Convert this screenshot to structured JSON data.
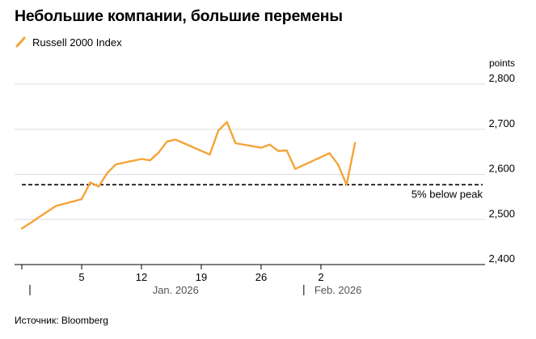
{
  "title": "Небольшие компании, большие перемены",
  "source": "Источник: Bloomberg",
  "chart_data": {
    "type": "line",
    "unit": "points",
    "series": [
      {
        "name": "Russell 2000 Index",
        "color": "#F5A338",
        "points": [
          [
            "2025-12-29",
            2480
          ],
          [
            "2025-12-30",
            2492
          ],
          [
            "2025-12-31",
            2505
          ],
          [
            "2026-01-02",
            2530
          ],
          [
            "2026-01-05",
            2545
          ],
          [
            "2026-01-06",
            2582
          ],
          [
            "2026-01-07",
            2573
          ],
          [
            "2026-01-08",
            2603
          ],
          [
            "2026-01-09",
            2622
          ],
          [
            "2026-01-12",
            2634
          ],
          [
            "2026-01-13",
            2631
          ],
          [
            "2026-01-14",
            2648
          ],
          [
            "2026-01-15",
            2673
          ],
          [
            "2026-01-16",
            2677
          ],
          [
            "2026-01-20",
            2644
          ],
          [
            "2026-01-21",
            2697
          ],
          [
            "2026-01-22",
            2716
          ],
          [
            "2026-01-23",
            2669
          ],
          [
            "2026-01-26",
            2659
          ],
          [
            "2026-01-27",
            2666
          ],
          [
            "2026-01-28",
            2652
          ],
          [
            "2026-01-29",
            2653
          ],
          [
            "2026-01-30",
            2612
          ],
          [
            "2026-02-03",
            2647
          ],
          [
            "2026-02-04",
            2622
          ],
          [
            "2026-02-05",
            2577
          ],
          [
            "2026-02-06",
            2670
          ]
        ]
      }
    ],
    "y_axis": {
      "min": 2400,
      "max": 2800,
      "ticks": [
        2400,
        2500,
        2600,
        2700,
        2800
      ],
      "tick_labels": [
        "2,400",
        "2,500",
        "2,600",
        "2,700",
        "2,800"
      ],
      "position": "right",
      "grid": true
    },
    "x_axis": {
      "ticks": [
        {
          "date": "2025-12-29",
          "label": ""
        },
        {
          "date": "2026-01-05",
          "label": "5"
        },
        {
          "date": "2026-01-12",
          "label": "12"
        },
        {
          "date": "2026-01-19",
          "label": "19"
        },
        {
          "date": "2026-01-26",
          "label": "26"
        },
        {
          "date": "2026-02-02",
          "label": "2"
        }
      ],
      "months": [
        {
          "label": "Jan. 2026",
          "date": "2026-01-16"
        },
        {
          "label": "Feb. 2026",
          "date": "2026-02-04"
        }
      ],
      "month_dividers": [
        "2025-12-29",
        "2026-01-31"
      ]
    },
    "reference_line": {
      "value": 2577,
      "label": "5% below peak",
      "style": "dashed"
    },
    "legend": "top-left"
  }
}
